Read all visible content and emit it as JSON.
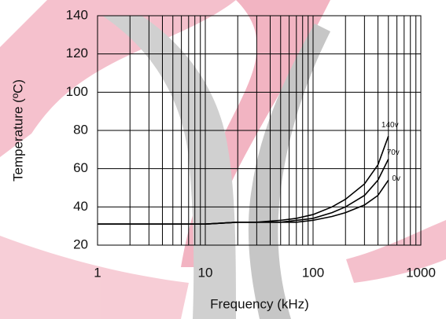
{
  "chart_data": {
    "type": "line",
    "xlabel": "Frequency (kHz)",
    "ylabel": "Temperature (ºC)",
    "x": [
      1,
      2,
      5,
      10,
      20,
      30,
      50,
      70,
      100,
      150,
      200,
      300,
      400,
      500
    ],
    "series": [
      {
        "name": "140v",
        "color": "#000000",
        "values": [
          31,
          31,
          31,
          31,
          32,
          32,
          33,
          34,
          36,
          40,
          44,
          52,
          62,
          77
        ]
      },
      {
        "name": "70v",
        "color": "#000000",
        "values": [
          31,
          31,
          31,
          31,
          32,
          32,
          32,
          33,
          34,
          37,
          40,
          46,
          54,
          65
        ]
      },
      {
        "name": "0v",
        "color": "#000000",
        "values": [
          31,
          31,
          31,
          31,
          32,
          32,
          32,
          32,
          33,
          35,
          37,
          41,
          46,
          54
        ]
      }
    ],
    "xscale": "log",
    "xlim": [
      1,
      1000
    ],
    "xticks": [
      1,
      10,
      100,
      1000
    ],
    "ylim": [
      20,
      140
    ],
    "yticks": [
      20,
      40,
      60,
      80,
      100,
      120,
      140
    ],
    "grid": true,
    "minor_grid": true
  }
}
